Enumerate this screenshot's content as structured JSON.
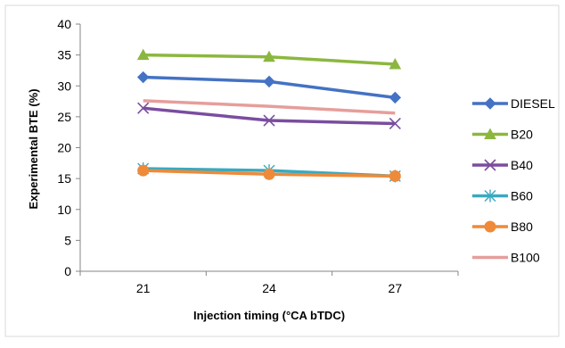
{
  "chart_data": {
    "type": "line",
    "xlabel": "Injection timing (°CA bTDC)",
    "ylabel": "Experimental BTE (%)",
    "categories": [
      "21",
      "24",
      "27"
    ],
    "ylim": [
      0,
      40
    ],
    "yticks": [
      "0",
      "5",
      "10",
      "15",
      "20",
      "25",
      "30",
      "35",
      "40"
    ],
    "grid": false,
    "legend_position": "right",
    "series": [
      {
        "name": "DIESEL",
        "values": [
          31.4,
          30.7,
          28.1
        ],
        "color": "#4472c4",
        "marker": "diamond"
      },
      {
        "name": "B20",
        "values": [
          35.0,
          34.7,
          33.5
        ],
        "color": "#8cb73f",
        "marker": "triangle"
      },
      {
        "name": "B40",
        "values": [
          26.4,
          24.4,
          23.9
        ],
        "color": "#7a4d9f",
        "marker": "x"
      },
      {
        "name": "B60",
        "values": [
          16.6,
          16.3,
          15.4
        ],
        "color": "#3aa9c0",
        "marker": "star"
      },
      {
        "name": "B80",
        "values": [
          16.3,
          15.7,
          15.4
        ],
        "color": "#ee8a39",
        "marker": "circle"
      },
      {
        "name": "B100",
        "values": [
          27.6,
          26.7,
          25.6
        ],
        "color": "#e69e9b",
        "marker": "none"
      }
    ]
  }
}
